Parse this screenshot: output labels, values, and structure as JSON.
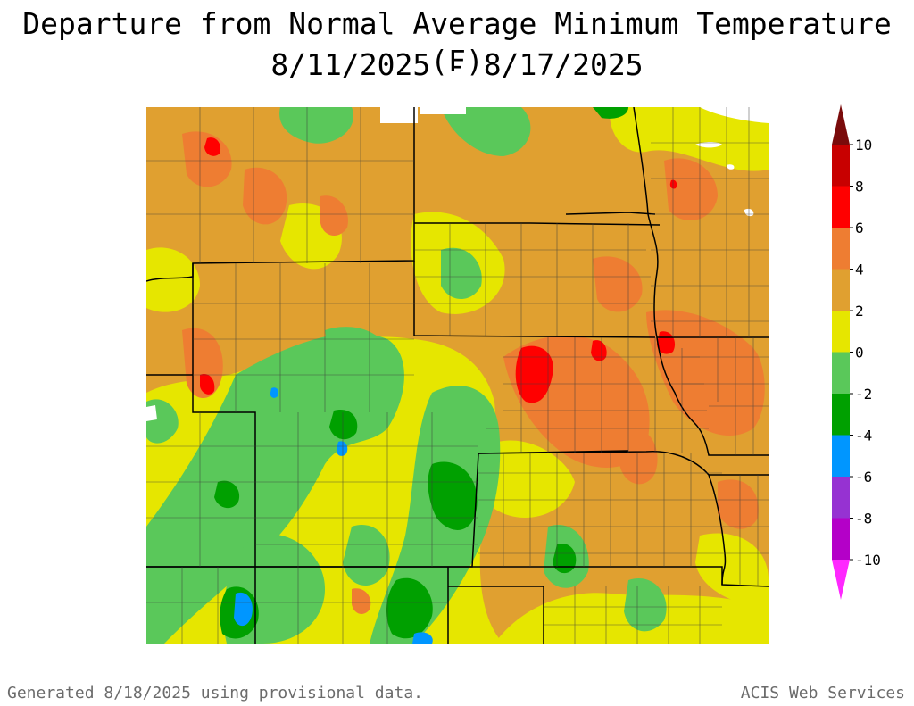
{
  "title": "Departure from Normal Average Minimum Temperature (F)",
  "subtitle": "8/11/2025 - 8/17/2025",
  "footer_left": "Generated 8/18/2025 using provisional data.",
  "footer_right": "ACIS Web Services",
  "legend": {
    "labels": [
      "10",
      "8",
      "6",
      "4",
      "2",
      "0",
      "-2",
      "-4",
      "-6",
      "-8",
      "-10"
    ],
    "bins": [
      {
        "range": "> 10",
        "color": "#7a0b0b"
      },
      {
        "range": "8 to 10",
        "color": "#c80000"
      },
      {
        "range": "6 to 8",
        "color": "#ff0000"
      },
      {
        "range": "4 to 6",
        "color": "#ee7d32"
      },
      {
        "range": "2 to 4",
        "color": "#e0a030"
      },
      {
        "range": "0 to 2",
        "color": "#e6e600"
      },
      {
        "range": "-2 to 0",
        "color": "#5ac85a"
      },
      {
        "range": "-4 to -2",
        "color": "#00a000"
      },
      {
        "range": "-6 to -4",
        "color": "#0096ff"
      },
      {
        "range": "-8 to -6",
        "color": "#9632d2"
      },
      {
        "range": "-10 to -8",
        "color": "#b400c8"
      },
      {
        "range": "< -10",
        "color": "#ff28ff"
      }
    ]
  },
  "map_colors": {
    "plus2": "#e0a030",
    "plus0": "#e6e600",
    "plus4": "#ee7d32",
    "plus6": "#ff0000",
    "minus0": "#5ac85a",
    "minus2": "#00a000",
    "minus4": "#0096ff",
    "border": "#000000",
    "county": "#3c3c3c",
    "water": "#ffffff"
  }
}
